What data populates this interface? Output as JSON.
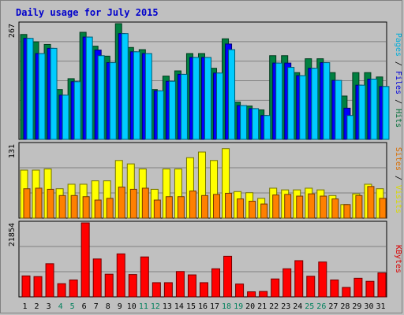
{
  "chart_data": {
    "type": "bar",
    "title": "Daily usage for July 2015",
    "categories": [
      "1",
      "2",
      "3",
      "4",
      "5",
      "6",
      "7",
      "8",
      "9",
      "10",
      "11",
      "12",
      "13",
      "14",
      "15",
      "16",
      "17",
      "18",
      "19",
      "20",
      "21",
      "22",
      "23",
      "24",
      "25",
      "26",
      "27",
      "28",
      "29",
      "30",
      "31"
    ],
    "weekend_days": [
      "4",
      "5",
      "11",
      "12",
      "18",
      "19",
      "25",
      "26"
    ],
    "panels": [
      {
        "name": "hits-files-pages",
        "ymax_label": "267",
        "ylim": [
          0,
          267
        ],
        "legend": [
          "Pages",
          "/",
          "Files",
          "/",
          "Hits"
        ],
        "series": [
          {
            "name": "Hits",
            "color": "#008040",
            "values": [
              242,
              225,
              219,
              115,
              140,
              247,
              215,
              192,
              267,
              212,
              207,
              115,
              146,
              158,
              198,
              198,
              164,
              232,
              86,
              77,
              68,
              193,
              193,
              154,
              186,
              186,
              154,
              100,
              154,
              154,
              144
            ]
          },
          {
            "name": "Files",
            "color": "#0000ff",
            "values": [
              233,
              198,
              210,
              102,
              133,
              236,
              206,
              177,
              244,
              202,
              198,
              112,
              134,
              150,
              189,
              189,
              153,
              220,
              78,
              71,
              55,
              176,
              176,
              147,
              164,
              177,
              136,
              72,
              125,
              139,
              122
            ]
          },
          {
            "name": "Pages",
            "color": "#00ccff",
            "values": [
              233,
              198,
              210,
              102,
              133,
              236,
              193,
              177,
              244,
              202,
              198,
              112,
              134,
              150,
              189,
              189,
              153,
              207,
              78,
              71,
              55,
              176,
              166,
              147,
              164,
              177,
              136,
              55,
              125,
              139,
              122
            ]
          }
        ]
      },
      {
        "name": "visits-sites",
        "ymax_label": "131",
        "ylim": [
          0,
          131
        ],
        "legend": [
          "Sites",
          "/",
          "Visits"
        ],
        "series": [
          {
            "name": "Visits",
            "color": "#ffff00",
            "values": [
              85,
              85,
              87,
              52,
              60,
              60,
              66,
              66,
              102,
              96,
              87,
              51,
              87,
              87,
              107,
              117,
              102,
              123,
              47,
              45,
              35,
              53,
              50,
              50,
              53,
              50,
              40,
              24,
              43,
              60,
              52
            ]
          },
          {
            "name": "Sites",
            "color": "#ff8000",
            "values": [
              52,
              53,
              51,
              40,
              40,
              38,
              32,
              35,
              55,
              51,
              53,
              32,
              38,
              38,
              48,
              40,
              42,
              44,
              34,
              30,
              25,
              41,
              42,
              39,
              43,
              39,
              34,
              24,
              40,
              56,
              35
            ]
          }
        ]
      },
      {
        "name": "kbytes",
        "ymax_label": "21854",
        "ylim": [
          0,
          21854
        ],
        "legend": [
          "KBytes"
        ],
        "series": [
          {
            "name": "KBytes",
            "color": "#ff0000",
            "values": [
              6200,
              6000,
              9800,
              3900,
              5000,
              21854,
              11200,
              6700,
              12700,
              6600,
              11800,
              4200,
              4200,
              7500,
              6500,
              4200,
              8300,
              12000,
              3800,
              1500,
              1600,
              5300,
              8300,
              10700,
              6100,
              10300,
              5000,
              2800,
              5500,
              4600,
              7100
            ]
          }
        ]
      }
    ],
    "colors": {
      "background": "#c0c0c0",
      "plot_background": "#c0c0c0",
      "grid": "#808080",
      "weekday_label": "#000000",
      "weekend_label": "#00805c"
    }
  }
}
